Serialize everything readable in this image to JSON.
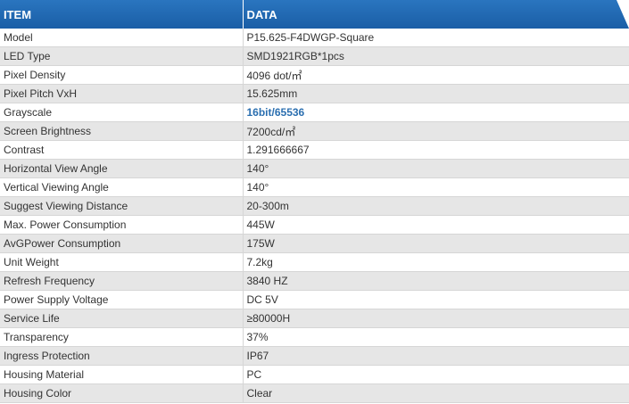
{
  "header": {
    "item": "ITEM",
    "data": "DATA"
  },
  "rows": [
    {
      "item": "Model",
      "data": "P15.625-F4DWGP-Square"
    },
    {
      "item": "LED Type",
      "data": "SMD1921RGB*1pcs"
    },
    {
      "item": "Pixel Density",
      "data": "4096 dot/㎡"
    },
    {
      "item": "Pixel Pitch VxH",
      "data": "15.625mm"
    },
    {
      "item": "Grayscale",
      "data": "16bit/65536"
    },
    {
      "item": "Screen Brightness",
      "data": "7200cd/㎡"
    },
    {
      "item": "Contrast",
      "data": "1.291666667"
    },
    {
      "item": "Horizontal View Angle",
      "data": "140°"
    },
    {
      "item": "Vertical Viewing Angle",
      "data": "140°"
    },
    {
      "item": "Suggest Viewing Distance",
      "data": "20-300m"
    },
    {
      "item": "Max. Power Consumption",
      "data": "445W"
    },
    {
      "item": "AvGPower Consumption",
      "data": "175W"
    },
    {
      "item": "Unit Weight",
      "data": "7.2kg"
    },
    {
      "item": "Refresh Frequency",
      "data": "3840 HZ"
    },
    {
      "item": "Power Supply Voltage",
      "data": "DC 5V"
    },
    {
      "item": "Service Life",
      "data": "≥80000H"
    },
    {
      "item": "Transparency",
      "data": "37%"
    },
    {
      "item": "Ingress Protection",
      "data": "IP67"
    },
    {
      "item": "Housing Material",
      "data": "PC"
    },
    {
      "item": "Housing Color",
      "data": "Clear"
    }
  ],
  "colors": {
    "header_bg": "#1f66ad",
    "highlight_text": "#2b6fb0",
    "alt_row_bg": "#e6e6e6"
  }
}
